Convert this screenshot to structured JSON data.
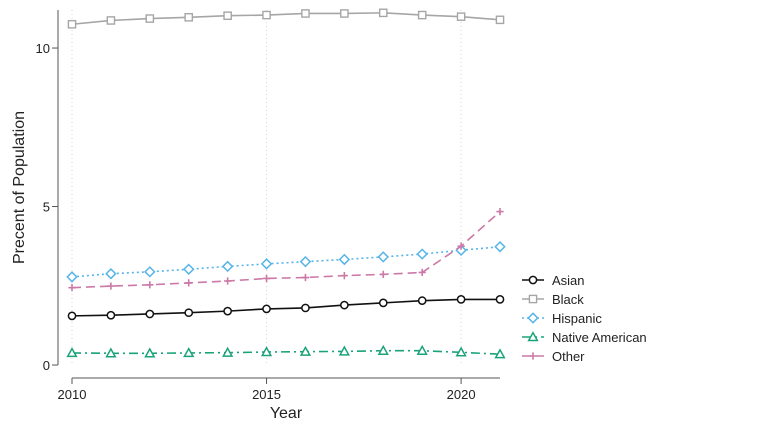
{
  "chart_data": {
    "type": "line",
    "title": "",
    "xlabel": "Year",
    "ylabel": "Precent of Population",
    "xlim": [
      2010,
      2021
    ],
    "ylim": [
      0,
      11.2
    ],
    "x_ticks": [
      2010,
      2015,
      2020
    ],
    "y_ticks": [
      0,
      5,
      10
    ],
    "grid": "vertical dotted",
    "legend_position": "right",
    "x": [
      2010,
      2011,
      2012,
      2013,
      2014,
      2015,
      2016,
      2017,
      2018,
      2019,
      2020,
      2021
    ],
    "series": [
      {
        "name": "Asian",
        "color": "#111111",
        "dash": "solid",
        "marker": "circle",
        "values": [
          1.55,
          1.57,
          1.61,
          1.65,
          1.7,
          1.77,
          1.8,
          1.89,
          1.96,
          2.03,
          2.07,
          2.07
        ]
      },
      {
        "name": "Black",
        "color": "#a6a6a6",
        "dash": "solid",
        "marker": "square",
        "values": [
          10.75,
          10.87,
          10.93,
          10.97,
          11.02,
          11.04,
          11.09,
          11.09,
          11.11,
          11.04,
          10.99,
          10.89
        ]
      },
      {
        "name": "Hispanic",
        "color": "#56b4e9",
        "dash": "dotted",
        "marker": "diamond",
        "values": [
          2.78,
          2.88,
          2.94,
          3.02,
          3.11,
          3.19,
          3.26,
          3.33,
          3.41,
          3.5,
          3.62,
          3.73
        ]
      },
      {
        "name": "Native American",
        "color": "#1aa37a",
        "dash": "dashdot",
        "marker": "triangle",
        "values": [
          0.38,
          0.37,
          0.37,
          0.38,
          0.39,
          0.41,
          0.42,
          0.43,
          0.45,
          0.45,
          0.4,
          0.34
        ]
      },
      {
        "name": "Other",
        "color": "#cc79a7",
        "dash": "dashed",
        "marker": "plus",
        "values": [
          2.44,
          2.49,
          2.53,
          2.59,
          2.65,
          2.73,
          2.76,
          2.82,
          2.86,
          2.92,
          3.75,
          4.84
        ]
      }
    ]
  }
}
